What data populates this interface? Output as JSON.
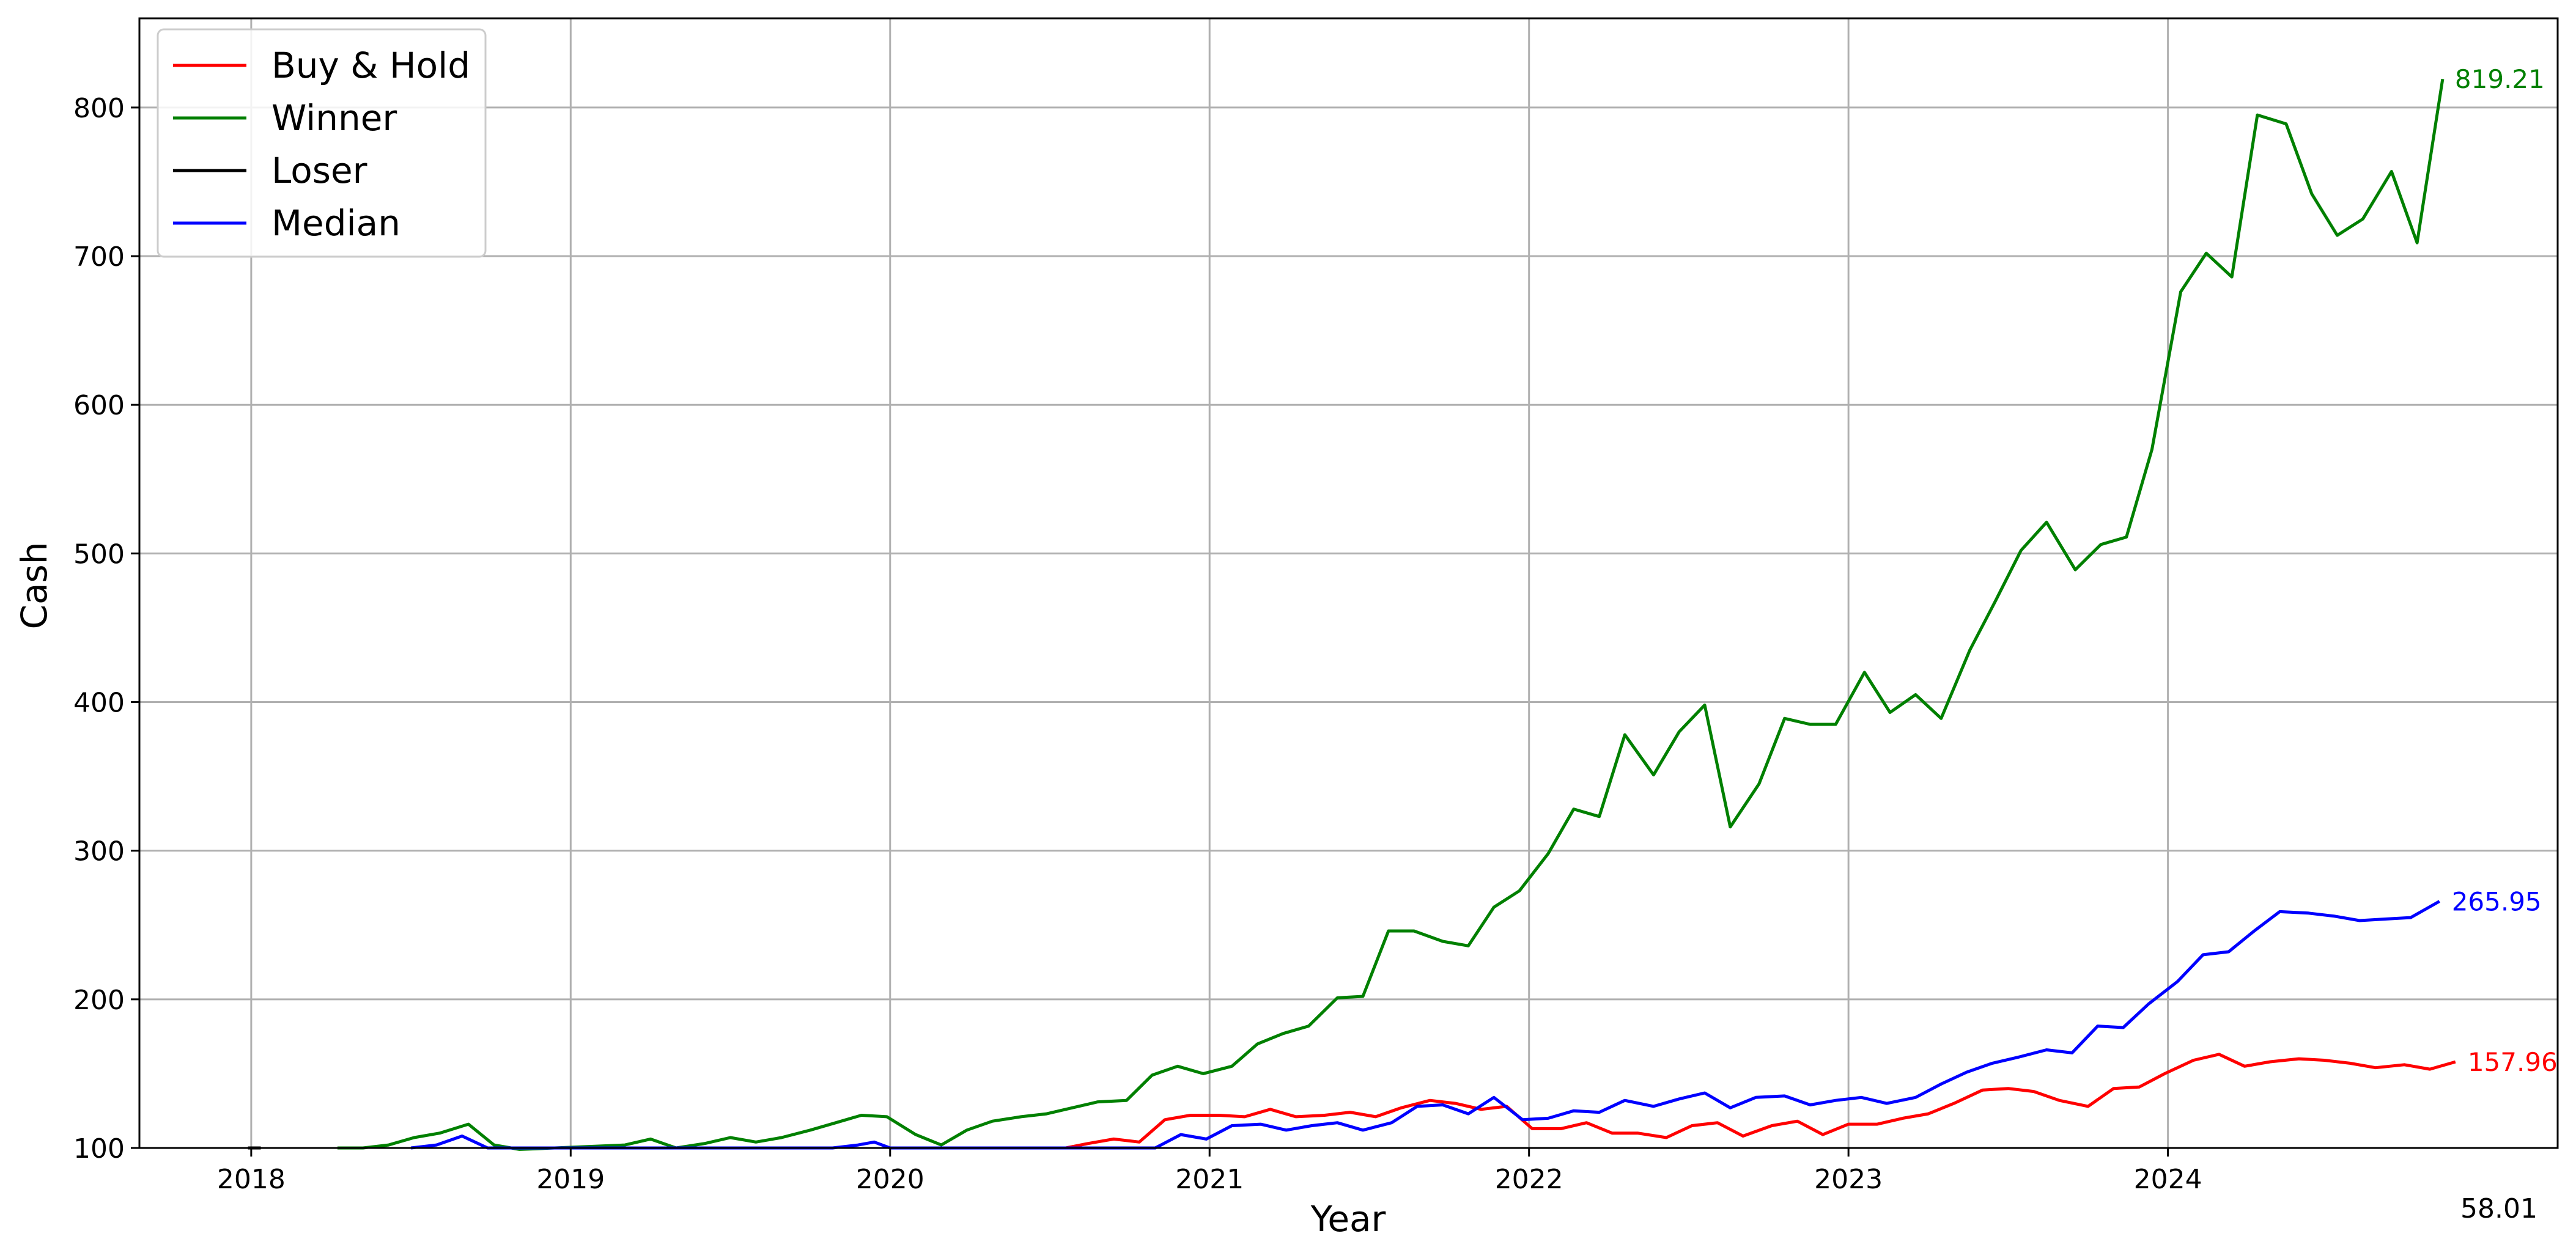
{
  "chart_data": {
    "type": "line",
    "title": "",
    "xlabel": "Year",
    "ylabel": "Cash",
    "xlim": [
      2017.65,
      2025.22
    ],
    "ylim": [
      100,
      860
    ],
    "x_ticks": [
      2018,
      2019,
      2020,
      2021,
      2022,
      2023,
      2024
    ],
    "x_tick_labels": [
      "2018",
      "2019",
      "2020",
      "2021",
      "2022",
      "2023",
      "2024"
    ],
    "y_ticks": [
      100,
      200,
      300,
      400,
      500,
      600,
      700,
      800
    ],
    "y_tick_labels": [
      "100",
      "200",
      "300",
      "400",
      "500",
      "600",
      "700",
      "800"
    ],
    "grid": true,
    "legend_position": "top-left",
    "corner_annotation": "58.01",
    "series": [
      {
        "name": "Buy & Hold",
        "color": "#ff0000",
        "end_label": "157.96",
        "points": [
          [
            2020.55,
            100
          ],
          [
            2020.62,
            103
          ],
          [
            2020.7,
            106
          ],
          [
            2020.78,
            104
          ],
          [
            2020.86,
            119
          ],
          [
            2020.94,
            122
          ],
          [
            2021.03,
            122
          ],
          [
            2021.11,
            121
          ],
          [
            2021.19,
            126
          ],
          [
            2021.27,
            121
          ],
          [
            2021.36,
            122
          ],
          [
            2021.44,
            124
          ],
          [
            2021.52,
            121
          ],
          [
            2021.6,
            127
          ],
          [
            2021.69,
            132
          ],
          [
            2021.77,
            130
          ],
          [
            2021.85,
            126
          ],
          [
            2021.93,
            128
          ],
          [
            2022.01,
            113
          ],
          [
            2022.1,
            113
          ],
          [
            2022.18,
            117
          ],
          [
            2022.26,
            110
          ],
          [
            2022.34,
            110
          ],
          [
            2022.43,
            107
          ],
          [
            2022.51,
            115
          ],
          [
            2022.59,
            117
          ],
          [
            2022.67,
            108
          ],
          [
            2022.76,
            115
          ],
          [
            2022.84,
            118
          ],
          [
            2022.92,
            109
          ],
          [
            2023.0,
            116
          ],
          [
            2023.09,
            116
          ],
          [
            2023.17,
            120
          ],
          [
            2023.25,
            123
          ],
          [
            2023.33,
            130
          ],
          [
            2023.42,
            139
          ],
          [
            2023.5,
            140
          ],
          [
            2023.58,
            138
          ],
          [
            2023.66,
            132
          ],
          [
            2023.75,
            128
          ],
          [
            2023.83,
            140
          ],
          [
            2023.91,
            141
          ],
          [
            2023.99,
            150
          ],
          [
            2024.08,
            159
          ],
          [
            2024.16,
            163
          ],
          [
            2024.24,
            155
          ],
          [
            2024.32,
            158
          ],
          [
            2024.41,
            160
          ],
          [
            2024.49,
            159
          ],
          [
            2024.57,
            157
          ],
          [
            2024.65,
            154
          ],
          [
            2024.74,
            156
          ],
          [
            2024.82,
            153
          ],
          [
            2024.9,
            157.96
          ]
        ]
      },
      {
        "name": "Winner",
        "color": "#008000",
        "end_label": "819.21",
        "points": [
          [
            2018.27,
            100
          ],
          [
            2018.35,
            100
          ],
          [
            2018.43,
            102
          ],
          [
            2018.51,
            107
          ],
          [
            2018.59,
            110
          ],
          [
            2018.68,
            116
          ],
          [
            2018.76,
            102
          ],
          [
            2018.84,
            99
          ],
          [
            2019.17,
            102
          ],
          [
            2019.25,
            106
          ],
          [
            2019.33,
            100
          ],
          [
            2019.42,
            103
          ],
          [
            2019.5,
            107
          ],
          [
            2019.58,
            104
          ],
          [
            2019.66,
            107
          ],
          [
            2019.75,
            112
          ],
          [
            2019.83,
            117
          ],
          [
            2019.91,
            122
          ],
          [
            2019.99,
            121
          ],
          [
            2020.08,
            109
          ],
          [
            2020.16,
            102
          ],
          [
            2020.24,
            112
          ],
          [
            2020.32,
            118
          ],
          [
            2020.41,
            121
          ],
          [
            2020.49,
            123
          ],
          [
            2020.57,
            127
          ],
          [
            2020.65,
            131
          ],
          [
            2020.74,
            132
          ],
          [
            2020.82,
            149
          ],
          [
            2020.9,
            155
          ],
          [
            2020.98,
            150
          ],
          [
            2021.07,
            155
          ],
          [
            2021.15,
            170
          ],
          [
            2021.23,
            177
          ],
          [
            2021.31,
            182
          ],
          [
            2021.4,
            201
          ],
          [
            2021.48,
            202
          ],
          [
            2021.56,
            246
          ],
          [
            2021.64,
            246
          ],
          [
            2021.73,
            239
          ],
          [
            2021.81,
            236
          ],
          [
            2021.89,
            262
          ],
          [
            2021.97,
            273
          ],
          [
            2022.06,
            298
          ],
          [
            2022.14,
            328
          ],
          [
            2022.22,
            323
          ],
          [
            2022.3,
            378
          ],
          [
            2022.39,
            351
          ],
          [
            2022.47,
            380
          ],
          [
            2022.55,
            398
          ],
          [
            2022.63,
            316
          ],
          [
            2022.72,
            345
          ],
          [
            2022.8,
            389
          ],
          [
            2022.88,
            385
          ],
          [
            2022.96,
            385
          ],
          [
            2023.05,
            420
          ],
          [
            2023.13,
            393
          ],
          [
            2023.21,
            405
          ],
          [
            2023.29,
            389
          ],
          [
            2023.38,
            435
          ],
          [
            2023.46,
            468
          ],
          [
            2023.54,
            502
          ],
          [
            2023.62,
            521
          ],
          [
            2023.71,
            489
          ],
          [
            2023.79,
            506
          ],
          [
            2023.87,
            511
          ],
          [
            2023.95,
            570
          ],
          [
            2024.04,
            676
          ],
          [
            2024.12,
            702
          ],
          [
            2024.2,
            686
          ],
          [
            2024.28,
            795
          ],
          [
            2024.37,
            789
          ],
          [
            2024.45,
            742
          ],
          [
            2024.53,
            714
          ],
          [
            2024.61,
            725
          ],
          [
            2024.7,
            757
          ],
          [
            2024.78,
            709
          ],
          [
            2024.86,
            819.21
          ]
        ]
      },
      {
        "name": "Loser",
        "color": "#000000",
        "end_label": "",
        "points": [
          [
            2017.99,
            100
          ],
          [
            2018.03,
            100
          ]
        ]
      },
      {
        "name": "Median",
        "color": "#0000ff",
        "end_label": "265.95",
        "points": [
          [
            2018.5,
            100
          ],
          [
            2018.58,
            102
          ],
          [
            2018.66,
            108
          ],
          [
            2018.74,
            100
          ],
          [
            2019.82,
            100
          ],
          [
            2019.9,
            102
          ],
          [
            2019.95,
            104
          ],
          [
            2020.0,
            100
          ],
          [
            2020.83,
            100
          ],
          [
            2020.91,
            109
          ],
          [
            2020.99,
            106
          ],
          [
            2021.07,
            115
          ],
          [
            2021.16,
            116
          ],
          [
            2021.24,
            112
          ],
          [
            2021.32,
            115
          ],
          [
            2021.4,
            117
          ],
          [
            2021.48,
            112
          ],
          [
            2021.57,
            117
          ],
          [
            2021.65,
            128
          ],
          [
            2021.73,
            129
          ],
          [
            2021.81,
            123
          ],
          [
            2021.89,
            134
          ],
          [
            2021.98,
            119
          ],
          [
            2022.06,
            120
          ],
          [
            2022.14,
            125
          ],
          [
            2022.22,
            124
          ],
          [
            2022.3,
            132
          ],
          [
            2022.39,
            128
          ],
          [
            2022.47,
            133
          ],
          [
            2022.55,
            137
          ],
          [
            2022.63,
            127
          ],
          [
            2022.71,
            134
          ],
          [
            2022.8,
            135
          ],
          [
            2022.88,
            129
          ],
          [
            2022.96,
            132
          ],
          [
            2023.04,
            134
          ],
          [
            2023.12,
            130
          ],
          [
            2023.21,
            134
          ],
          [
            2023.29,
            143
          ],
          [
            2023.37,
            151
          ],
          [
            2023.45,
            157
          ],
          [
            2023.53,
            161
          ],
          [
            2023.62,
            166
          ],
          [
            2023.7,
            164
          ],
          [
            2023.78,
            182
          ],
          [
            2023.86,
            181
          ],
          [
            2023.94,
            197
          ],
          [
            2024.03,
            212
          ],
          [
            2024.11,
            230
          ],
          [
            2024.19,
            232
          ],
          [
            2024.27,
            246
          ],
          [
            2024.35,
            259
          ],
          [
            2024.44,
            258
          ],
          [
            2024.52,
            256
          ],
          [
            2024.6,
            253
          ],
          [
            2024.68,
            254
          ],
          [
            2024.76,
            255
          ],
          [
            2024.85,
            265.95
          ]
        ]
      }
    ]
  }
}
